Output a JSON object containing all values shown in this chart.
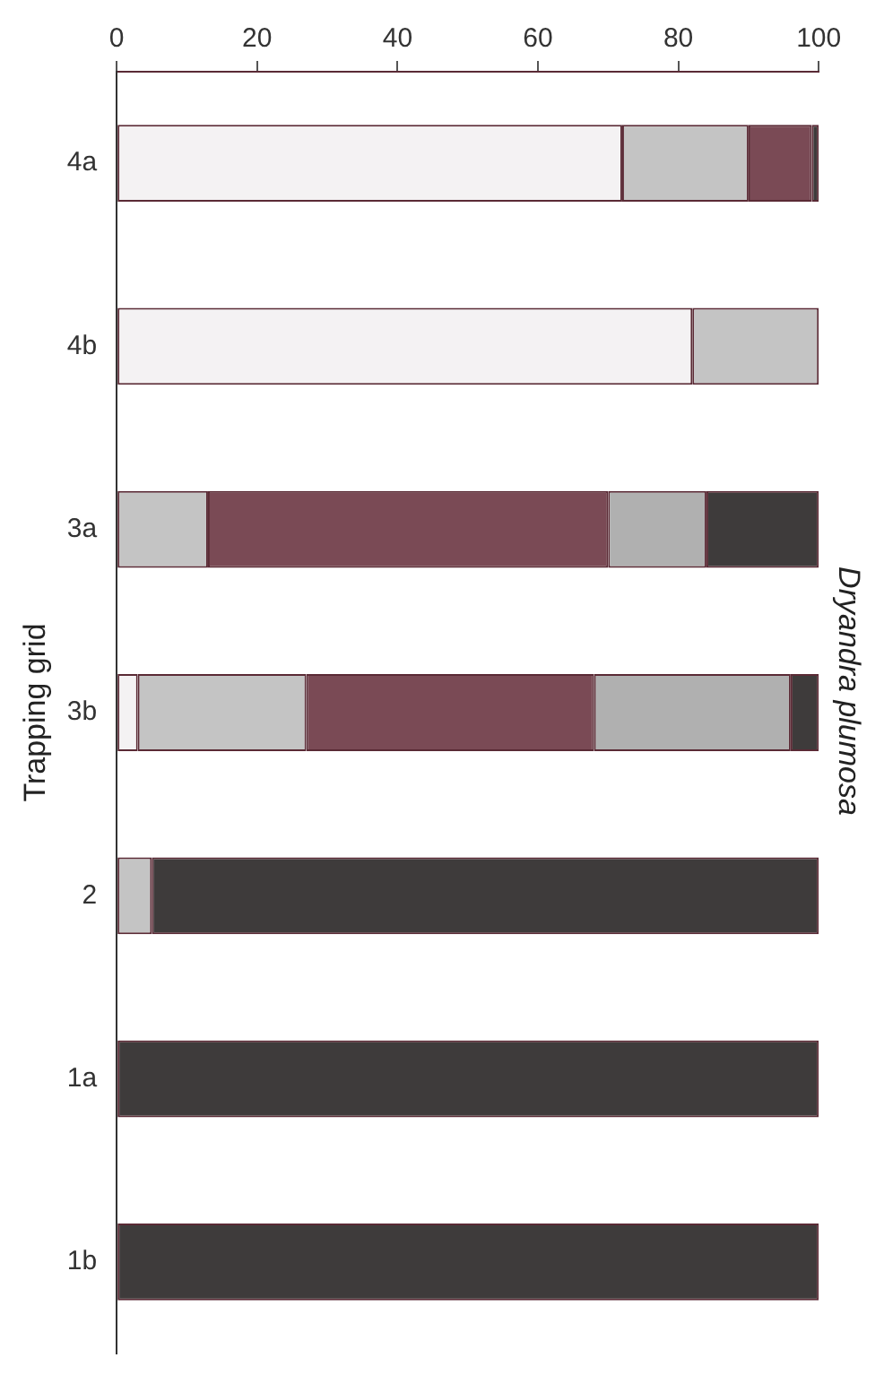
{
  "chart_data": {
    "type": "bar",
    "title": "Dryandra plumosa",
    "ylabel": "Trapping grid",
    "categories": [
      "4a",
      "4b",
      "3a",
      "3b",
      "2",
      "1a",
      "1b"
    ],
    "stacked": true,
    "orientation": "horizontal",
    "series": [
      {
        "color": "#f4f2f3",
        "values": [
          72,
          82,
          null,
          3,
          null,
          null,
          null
        ]
      },
      {
        "color": "#c4c4c4",
        "values": [
          18,
          18,
          13,
          24,
          5,
          null,
          null
        ]
      },
      {
        "color": "#7a4a55",
        "values": [
          9,
          null,
          57,
          41,
          null,
          null,
          null
        ]
      },
      {
        "color": "#b0b0b0",
        "values": [
          null,
          null,
          14,
          28,
          null,
          null,
          null
        ]
      },
      {
        "color": "#3e3b3b",
        "values": [
          1,
          null,
          16,
          4,
          95,
          100,
          100
        ]
      }
    ],
    "xlim": [
      0,
      100
    ],
    "xticks": [
      0,
      20,
      40,
      60,
      80,
      100
    ],
    "grid": false
  }
}
